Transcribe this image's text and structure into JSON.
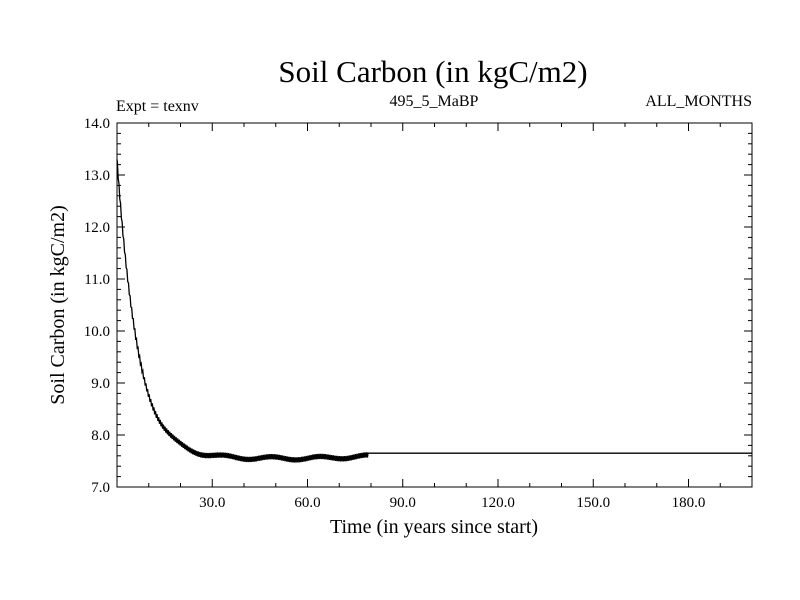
{
  "chart_data": {
    "type": "line",
    "title": "Soil Carbon (in kgC/m2)",
    "subtitle_left": "Expt = texnv",
    "subtitle_center": "495_5_MaBP",
    "subtitle_right": "ALL_MONTHS",
    "xlabel": "Time (in years since start)",
    "ylabel": "Soil Carbon (in kgC/m2)",
    "xlim": [
      0,
      200
    ],
    "ylim": [
      7.0,
      14.0
    ],
    "x_ticks": [
      30,
      60,
      90,
      120,
      150,
      180
    ],
    "x_tick_labels": [
      "30.0",
      "60.0",
      "90.0",
      "120.0",
      "150.0",
      "180.0"
    ],
    "y_ticks": [
      7,
      8,
      9,
      10,
      11,
      12,
      13,
      14
    ],
    "y_tick_labels": [
      "7.0",
      "8.0",
      "9.0",
      "10.0",
      "11.0",
      "12.0",
      "13.0",
      "14.0"
    ],
    "series": [
      {
        "name": "Soil Carbon",
        "decay": {
          "start": 13.3,
          "end": 7.55,
          "tau_years": 6.5
        },
        "oscillation_amplitude": 0.05,
        "oscillation_per_year": 2,
        "oscillation_until_year": 79,
        "plateau_value": 7.65,
        "x_end": 200
      }
    ]
  }
}
